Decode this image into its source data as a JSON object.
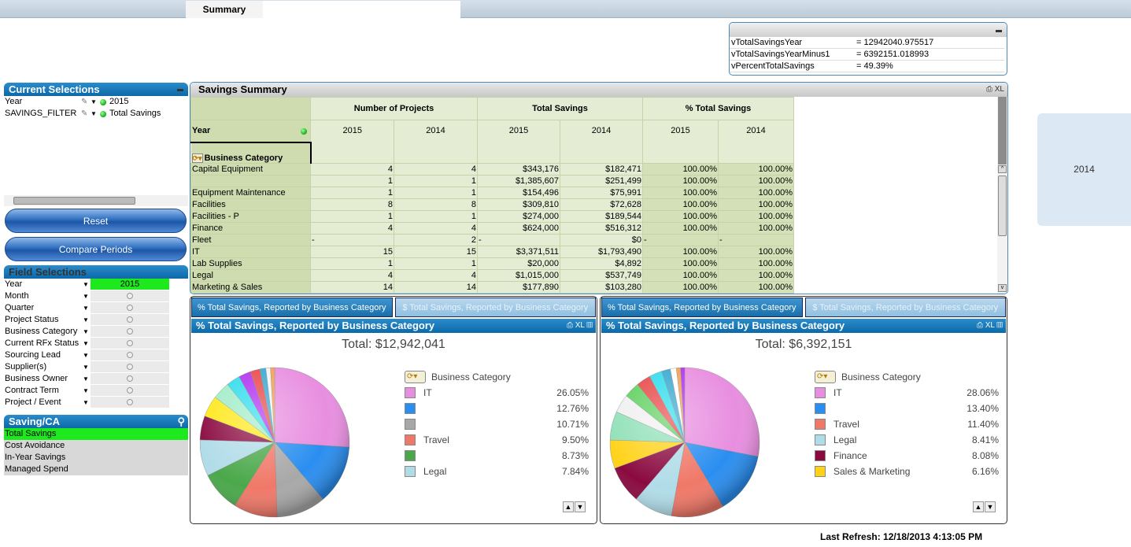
{
  "tabs": {
    "active": "Summary"
  },
  "variables": [
    {
      "name": "vTotalSavingsYear",
      "value": "= 12942040.975517"
    },
    {
      "name": "vTotalSavingsYearMinus1",
      "value": "= 6392151.018993"
    },
    {
      "name": "vPercentTotalSavings",
      "value": "= 49.39%"
    }
  ],
  "side_year": "2014",
  "current_selections": {
    "title": "Current Selections",
    "rows": [
      {
        "field": "Year",
        "value": "2015"
      },
      {
        "field": "SAVINGS_FILTER",
        "value": "Total Savings"
      }
    ]
  },
  "buttons": {
    "reset": "Reset",
    "compare": "Compare Periods"
  },
  "field_selections": {
    "title": "Field Selections",
    "rows": [
      {
        "name": "Year",
        "value": "2015"
      },
      {
        "name": "Month",
        "value": ""
      },
      {
        "name": "Quarter",
        "value": ""
      },
      {
        "name": "Project Status",
        "value": ""
      },
      {
        "name": "Business Category",
        "value": ""
      },
      {
        "name": "Current RFx Status",
        "value": ""
      },
      {
        "name": "Sourcing Lead",
        "value": ""
      },
      {
        "name": "Supplier(s)",
        "value": ""
      },
      {
        "name": "Business Owner",
        "value": ""
      },
      {
        "name": "Contract Term",
        "value": ""
      },
      {
        "name": "Project / Event",
        "value": ""
      }
    ]
  },
  "saving_ca": {
    "title": "Saving/CA",
    "items": [
      "Total Savings",
      "Cost Avoidance",
      "In-Year Savings",
      "Managed Spend"
    ],
    "selected": 0
  },
  "summary": {
    "title": "Savings Summary",
    "icons": "XL",
    "groups": [
      "Number of Projects",
      "Total Savings",
      "% Total Savings"
    ],
    "years": [
      "2015",
      "2014",
      "2015",
      "2014",
      "2015",
      "2014"
    ],
    "dim_year": "Year",
    "dim_cat": "Business Category",
    "rows": [
      [
        "Capital Equipment",
        "4",
        "4",
        "$343,176",
        "$182,471",
        "100.00%",
        "100.00%"
      ],
      [
        "",
        "1",
        "1",
        "$1,385,607",
        "$251,499",
        "100.00%",
        "100.00%"
      ],
      [
        "Equipment Maintenance",
        "1",
        "1",
        "$154,496",
        "$75,991",
        "100.00%",
        "100.00%"
      ],
      [
        "Facilities",
        "8",
        "8",
        "$309,810",
        "$72,628",
        "100.00%",
        "100.00%"
      ],
      [
        "Facilities - P",
        "1",
        "1",
        "$274,000",
        "$189,544",
        "100.00%",
        "100.00%"
      ],
      [
        "Finance",
        "4",
        "4",
        "$624,000",
        "$516,312",
        "100.00%",
        "100.00%"
      ],
      [
        "Fleet",
        "-",
        "2",
        "-",
        "$0",
        "-",
        "-"
      ],
      [
        "IT",
        "15",
        "15",
        "$3,371,511",
        "$1,793,490",
        "100.00%",
        "100.00%"
      ],
      [
        "Lab Supplies",
        "1",
        "1",
        "$20,000",
        "$4,892",
        "100.00%",
        "100.00%"
      ],
      [
        "Legal",
        "4",
        "4",
        "$1,015,000",
        "$537,749",
        "100.00%",
        "100.00%"
      ],
      [
        "Marketing & Sales",
        "14",
        "14",
        "$177,890",
        "$103,280",
        "100.00%",
        "100.00%"
      ]
    ]
  },
  "charts": [
    {
      "tabs": [
        "% Total Savings, Reported by Business Category",
        "$ Total Savings, Reported by Business Category"
      ],
      "title": "% Total Savings, Reported by Business Category",
      "total": "Total: $12,942,041",
      "legend_title": "Business Category",
      "legend": [
        {
          "label": "IT",
          "value": "26.05%",
          "color": "#e88ee0"
        },
        {
          "label": "",
          "value": "12.76%",
          "color": "#2a8ef0"
        },
        {
          "label": "",
          "value": "10.71%",
          "color": "#a8a8a8"
        },
        {
          "label": "Travel",
          "value": "9.50%",
          "color": "#f07868"
        },
        {
          "label": "",
          "value": "8.73%",
          "color": "#4aa84a"
        },
        {
          "label": "Legal",
          "value": "7.84%",
          "color": "#b0dce8"
        }
      ],
      "slices": [
        [
          26.05,
          "#e88ee0"
        ],
        [
          12.76,
          "#2a8ef0"
        ],
        [
          10.71,
          "#a8a8a8"
        ],
        [
          9.5,
          "#f07868"
        ],
        [
          8.73,
          "#4aa84a"
        ],
        [
          7.84,
          "#b0dce8"
        ],
        [
          5.2,
          "#8a0a40"
        ],
        [
          4.6,
          "#ffe81a"
        ],
        [
          3.8,
          "#a0ecc8"
        ],
        [
          3.0,
          "#30dcec"
        ],
        [
          2.6,
          "#b030f0"
        ],
        [
          2.1,
          "#e84848"
        ],
        [
          1.3,
          "#38a8d0"
        ],
        [
          1.0,
          "#f4f4f4"
        ],
        [
          0.9,
          "#f0a050"
        ]
      ]
    },
    {
      "tabs": [
        "% Total Savings, Reported by Business Category",
        "$ Total Savings, Reported by Business Category"
      ],
      "title": "% Total Savings, Reported by Business Category",
      "total": "Total: $6,392,151",
      "legend_title": "Business Category",
      "legend": [
        {
          "label": "IT",
          "value": "28.06%",
          "color": "#e88ee0"
        },
        {
          "label": "",
          "value": "13.40%",
          "color": "#2a8ef0"
        },
        {
          "label": "Travel",
          "value": "11.40%",
          "color": "#f07868"
        },
        {
          "label": "Legal",
          "value": "8.41%",
          "color": "#b0dce8"
        },
        {
          "label": "Finance",
          "value": "8.08%",
          "color": "#8a0a40"
        },
        {
          "label": "Sales & Marketing",
          "value": "6.16%",
          "color": "#ffd21a"
        }
      ],
      "slices": [
        [
          28.06,
          "#e88ee0"
        ],
        [
          13.4,
          "#2a8ef0"
        ],
        [
          11.4,
          "#f07868"
        ],
        [
          8.41,
          "#b0dce8"
        ],
        [
          8.08,
          "#8a0a40"
        ],
        [
          6.16,
          "#ffd21a"
        ],
        [
          6.2,
          "#90e0b8"
        ],
        [
          4.0,
          "#f0f0f0"
        ],
        [
          3.4,
          "#60d060"
        ],
        [
          3.1,
          "#e84848"
        ],
        [
          2.8,
          "#30dcec"
        ],
        [
          1.9,
          "#38a8d0"
        ],
        [
          1.3,
          "#ffffff"
        ],
        [
          0.9,
          "#f0a050"
        ],
        [
          0.9,
          "#b030f0"
        ]
      ]
    }
  ],
  "last_refresh": "Last Refresh: 12/18/2013 4:13:05 PM"
}
